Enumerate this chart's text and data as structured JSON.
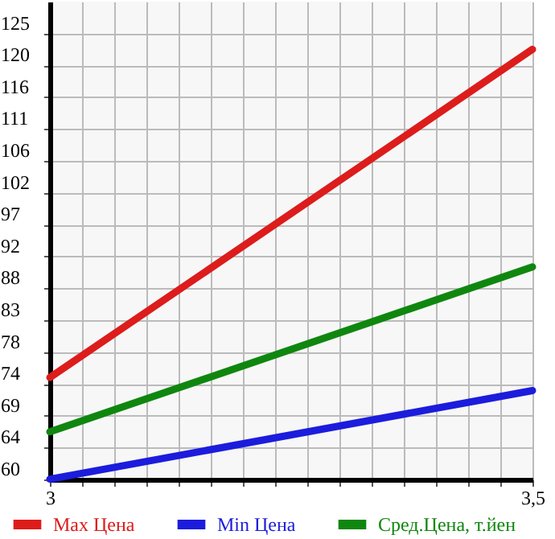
{
  "chart_data": {
    "type": "line",
    "x": [
      3,
      3.5
    ],
    "series": [
      {
        "name": "Max Цена",
        "color": "#dd1c1c",
        "values": [
          74.7,
          122.5
        ]
      },
      {
        "name": "Min Цена",
        "color": "#1c1cdd",
        "values": [
          59.9,
          72.8
        ]
      },
      {
        "name": "Сред.Цена, т.йен",
        "color": "#0f870f",
        "values": [
          66.8,
          90.8
        ]
      }
    ],
    "xlim": [
      3,
      3.5
    ],
    "xticks": [
      {
        "value": 3,
        "label": "3"
      },
      {
        "value": 3.0333,
        "label": null
      },
      {
        "value": 3.0667,
        "label": null
      },
      {
        "value": 3.1,
        "label": null
      },
      {
        "value": 3.1333,
        "label": null
      },
      {
        "value": 3.1667,
        "label": null
      },
      {
        "value": 3.2,
        "label": null
      },
      {
        "value": 3.2333,
        "label": null
      },
      {
        "value": 3.2667,
        "label": null
      },
      {
        "value": 3.3,
        "label": null
      },
      {
        "value": 3.3333,
        "label": null
      },
      {
        "value": 3.3667,
        "label": null
      },
      {
        "value": 3.4,
        "label": null
      },
      {
        "value": 3.4333,
        "label": null
      },
      {
        "value": 3.4667,
        "label": null
      },
      {
        "value": 3.5,
        "label": "3,5"
      }
    ],
    "ylim": [
      59.85,
      129.45
    ],
    "yticks": [
      {
        "value": 59.85,
        "label": "60"
      },
      {
        "value": 64.49,
        "label": "64"
      },
      {
        "value": 69.13,
        "label": "69"
      },
      {
        "value": 73.77,
        "label": "74"
      },
      {
        "value": 78.41,
        "label": "78"
      },
      {
        "value": 83.05,
        "label": "83"
      },
      {
        "value": 87.69,
        "label": "88"
      },
      {
        "value": 92.33,
        "label": "92"
      },
      {
        "value": 96.97,
        "label": "97"
      },
      {
        "value": 101.61,
        "label": "102"
      },
      {
        "value": 106.25,
        "label": "106"
      },
      {
        "value": 110.89,
        "label": "111"
      },
      {
        "value": 115.53,
        "label": "116"
      },
      {
        "value": 120.17,
        "label": "120"
      },
      {
        "value": 124.81,
        "label": "125"
      }
    ],
    "grid": true,
    "legend": "bottom",
    "marker": "none",
    "line_style": "solid"
  }
}
